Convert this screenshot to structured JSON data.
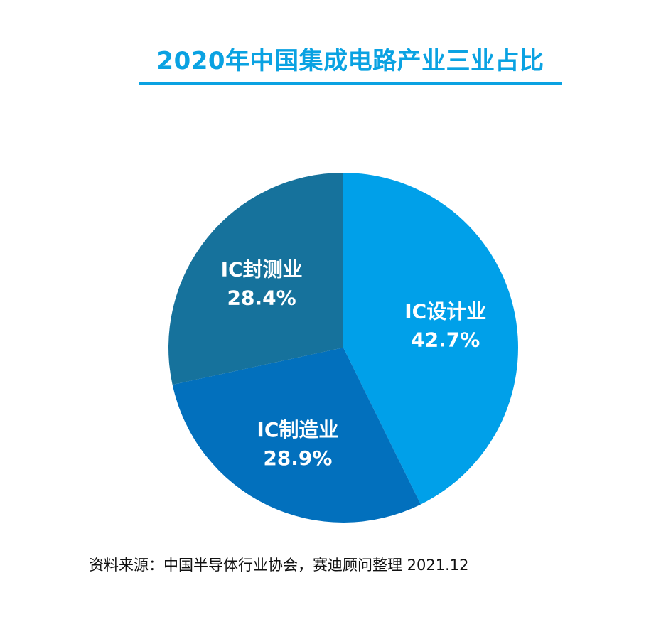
{
  "title": "2020年中国集成电路产业三业占比",
  "source": "资料来源：中国半导体行业协会，赛迪顾问整理 2021.12",
  "chart_data": {
    "type": "pie",
    "title": "2020年中国集成电路产业三业占比",
    "slices": [
      {
        "label": "IC设计业",
        "value": 42.7,
        "display": "42.7%",
        "color": "#00a0e9"
      },
      {
        "label": "IC制造业",
        "value": 28.9,
        "display": "28.9%",
        "color": "#0270bd"
      },
      {
        "label": "IC封测业",
        "value": 28.4,
        "display": "28.4%",
        "color": "#16729c"
      }
    ],
    "start": "12 o'clock",
    "direction": "clockwise",
    "legend": "none"
  }
}
